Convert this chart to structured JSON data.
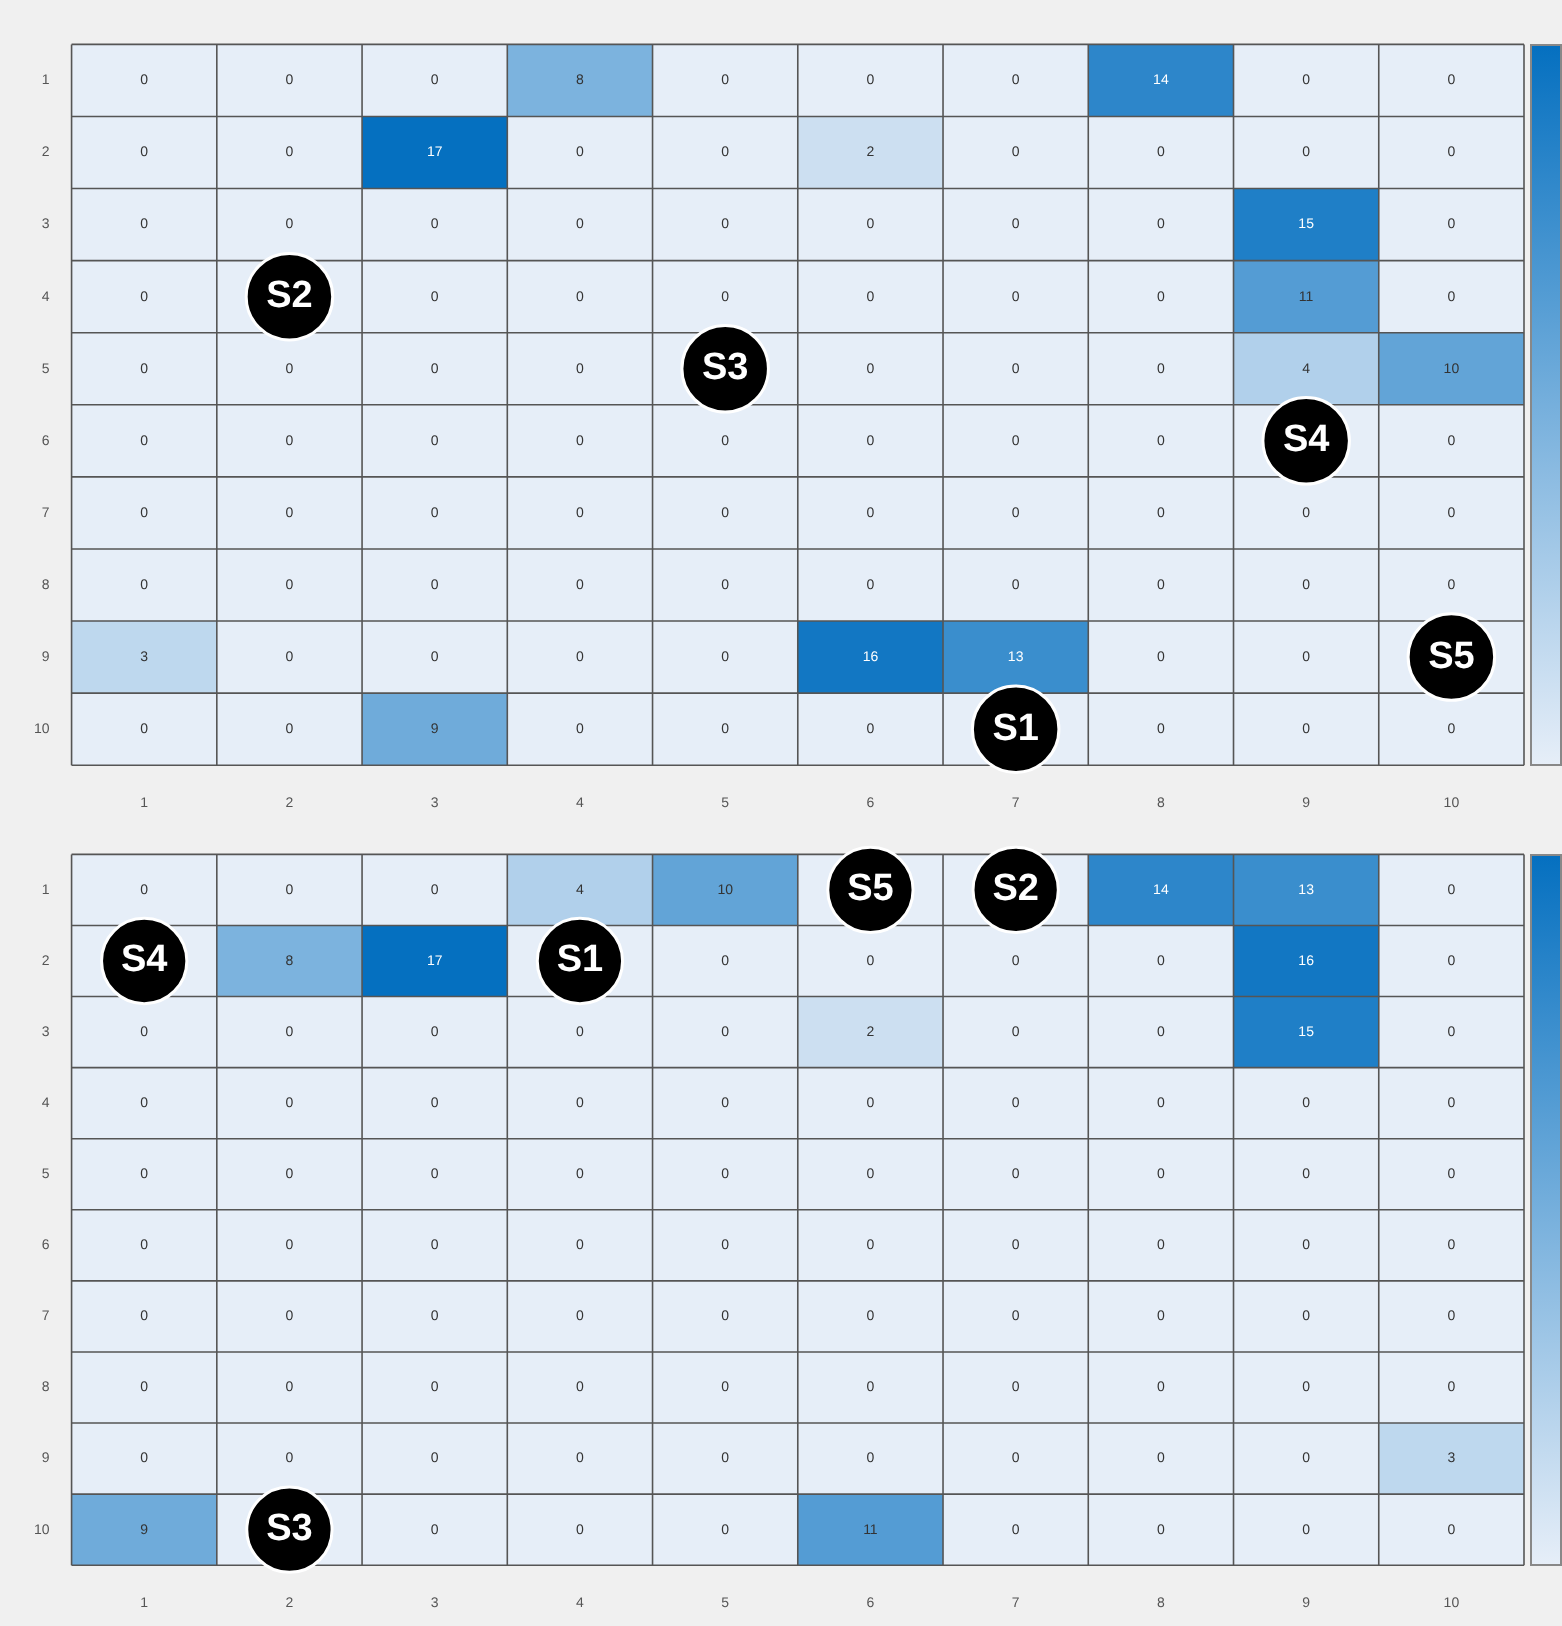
{
  "chart_data": [
    {
      "type": "heatmap",
      "categories": [
        "1",
        "2",
        "3",
        "4",
        "5",
        "6",
        "7",
        "8",
        "9",
        "10"
      ],
      "y_categories": [
        "1",
        "2",
        "3",
        "4",
        "5",
        "6",
        "7",
        "8",
        "9",
        "10"
      ],
      "cells": [
        [
          0,
          0,
          0,
          8,
          0,
          0,
          0,
          14,
          0,
          0
        ],
        [
          0,
          0,
          17,
          0,
          0,
          2,
          0,
          0,
          0,
          0
        ],
        [
          0,
          0,
          0,
          0,
          0,
          0,
          0,
          0,
          15,
          0
        ],
        [
          0,
          null,
          0,
          0,
          0,
          0,
          0,
          0,
          11,
          0
        ],
        [
          0,
          0,
          0,
          0,
          null,
          0,
          0,
          0,
          4,
          10
        ],
        [
          0,
          0,
          0,
          0,
          0,
          0,
          0,
          0,
          null,
          0
        ],
        [
          0,
          0,
          0,
          0,
          0,
          0,
          0,
          0,
          0,
          0
        ],
        [
          0,
          0,
          0,
          0,
          0,
          0,
          0,
          0,
          0,
          0
        ],
        [
          3,
          0,
          0,
          0,
          0,
          16,
          13,
          0,
          0,
          null
        ],
        [
          0,
          0,
          9,
          0,
          0,
          0,
          null,
          0,
          0,
          0
        ]
      ],
      "data_labels": true,
      "annotations": [
        "S1",
        "S2",
        "S3",
        "S4",
        "S5"
      ]
    },
    {
      "type": "heatmap",
      "categories": [
        "1",
        "2",
        "3",
        "4",
        "5",
        "6",
        "7",
        "8",
        "9",
        "10"
      ],
      "y_categories": [
        "1",
        "2",
        "3",
        "4",
        "5",
        "6",
        "7",
        "8",
        "9",
        "10"
      ],
      "cells": [
        [
          0,
          0,
          0,
          4,
          10,
          null,
          null,
          14,
          13,
          0
        ],
        [
          null,
          8,
          17,
          null,
          0,
          0,
          0,
          0,
          16,
          0
        ],
        [
          0,
          0,
          0,
          0,
          0,
          2,
          0,
          0,
          15,
          0
        ],
        [
          0,
          0,
          0,
          0,
          0,
          0,
          0,
          0,
          0,
          0
        ],
        [
          0,
          0,
          0,
          0,
          0,
          0,
          0,
          0,
          0,
          0
        ],
        [
          0,
          0,
          0,
          0,
          0,
          0,
          0,
          0,
          0,
          0
        ],
        [
          0,
          0,
          0,
          0,
          0,
          0,
          0,
          0,
          0,
          0
        ],
        [
          0,
          0,
          0,
          0,
          0,
          0,
          0,
          0,
          0,
          0
        ],
        [
          0,
          0,
          0,
          0,
          0,
          0,
          0,
          0,
          0,
          3
        ],
        [
          9,
          null,
          0,
          0,
          0,
          11,
          0,
          0,
          0,
          0
        ]
      ],
      "data_labels": true,
      "annotations": [
        "S1",
        "S2",
        "S3",
        "S4",
        "S5"
      ]
    }
  ]
}
